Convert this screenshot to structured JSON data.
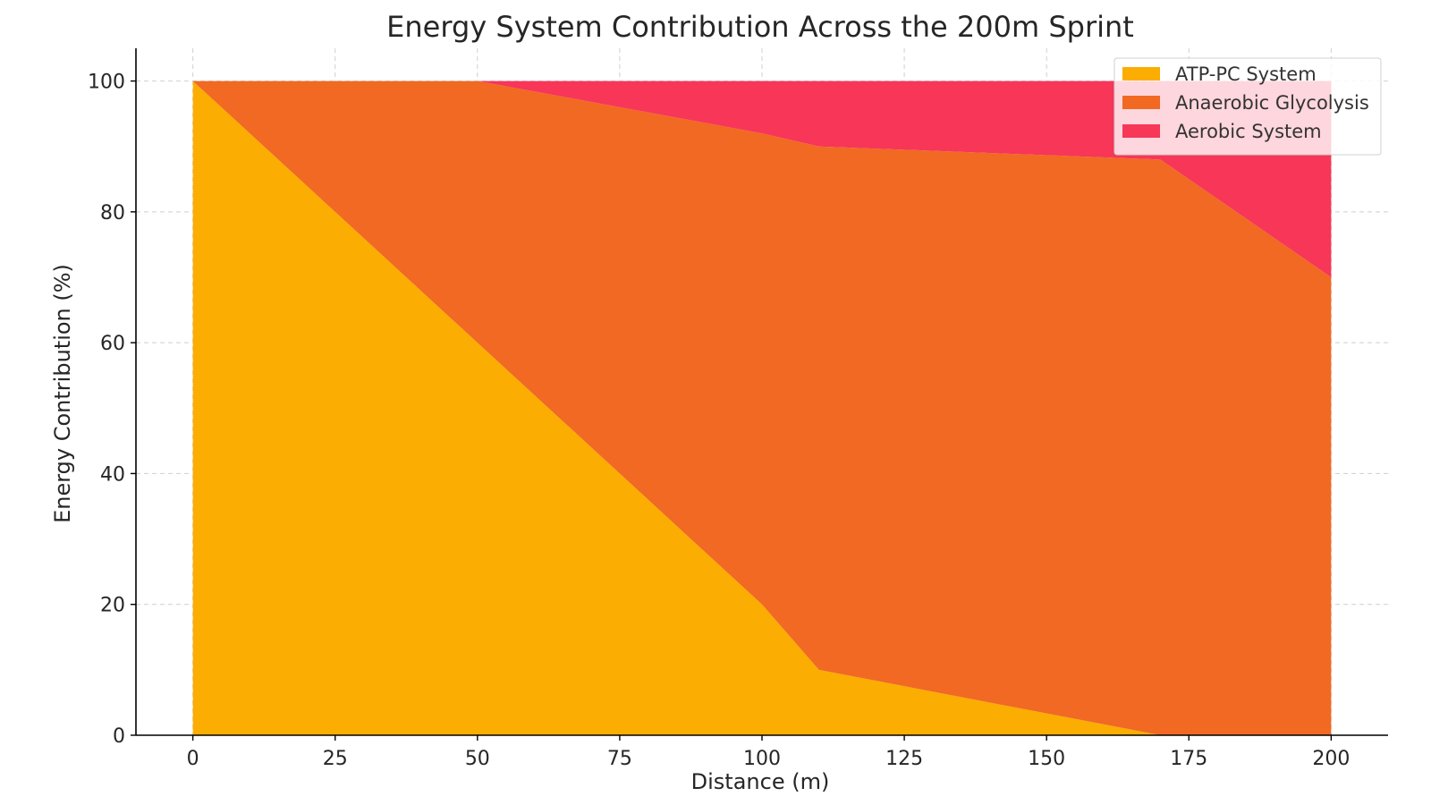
{
  "chart_data": {
    "type": "area",
    "stacked": true,
    "title": "Energy System Contribution Across the 200m Sprint",
    "xlabel": "Distance (m)",
    "ylabel": "Energy Contribution (%)",
    "x": [
      0,
      25,
      50,
      75,
      100,
      110,
      170,
      200
    ],
    "xlim": [
      -10,
      210
    ],
    "ylim": [
      0,
      105
    ],
    "xticks": [
      0,
      25,
      50,
      75,
      100,
      125,
      150,
      175,
      200
    ],
    "yticks": [
      0,
      20,
      40,
      60,
      80,
      100
    ],
    "grid": true,
    "legend_position": "top-right",
    "series": [
      {
        "name": "ATP-PC System",
        "color": "#FCAD02",
        "values": [
          100,
          80,
          60,
          40,
          20,
          10,
          0,
          0
        ]
      },
      {
        "name": "Anaerobic Glycolysis",
        "color": "#F16922",
        "values": [
          0,
          20,
          40,
          56,
          72,
          80,
          88,
          70
        ]
      },
      {
        "name": "Aerobic System",
        "color": "#F73658",
        "values": [
          0,
          0,
          0,
          4,
          8,
          10,
          12,
          30
        ]
      }
    ]
  }
}
